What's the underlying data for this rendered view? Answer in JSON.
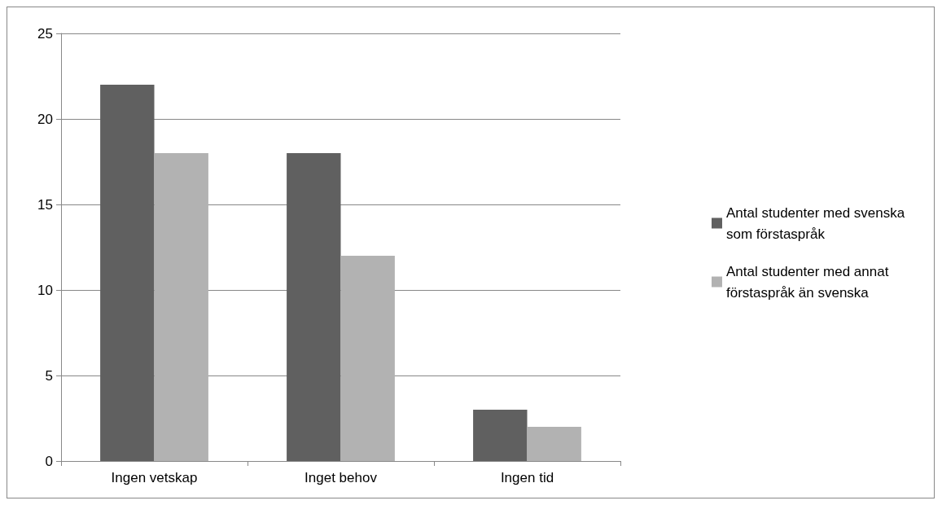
{
  "chart_data": {
    "type": "bar",
    "categories": [
      "Ingen vetskap",
      "Inget behov",
      "Ingen tid"
    ],
    "series": [
      {
        "name": "Antal studenter med svenska som förstaspråk",
        "color": "#606060",
        "values": [
          22,
          18,
          3
        ]
      },
      {
        "name": "Antal studenter med annat förstaspråk än svenska",
        "color": "#b2b2b2",
        "values": [
          18,
          12,
          2
        ]
      }
    ],
    "ylim": [
      0,
      25
    ],
    "yticks": [
      0,
      5,
      10,
      15,
      20,
      25
    ],
    "grid": "y",
    "legend": "right"
  }
}
